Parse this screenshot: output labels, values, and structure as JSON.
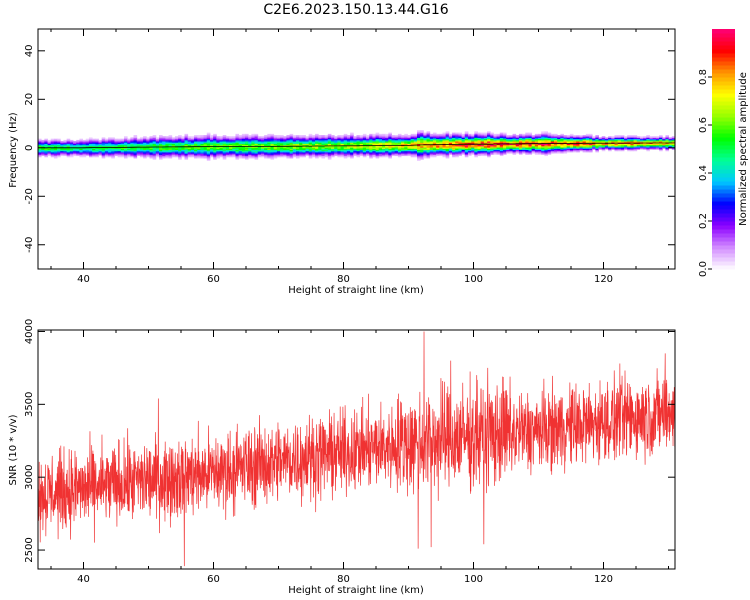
{
  "title": "C2E6.2023.150.13.44.G16",
  "chart_data": [
    {
      "type": "heatmap",
      "xlabel": "Height of straight line (km)",
      "ylabel": "Frequency (Hz)",
      "xlim": [
        33,
        131
      ],
      "ylim": [
        -50,
        49
      ],
      "x_ticks": [
        40,
        60,
        80,
        100,
        120
      ],
      "y_ticks": [
        40,
        20,
        0,
        -20,
        -40
      ],
      "grid": false,
      "signal_band": {
        "x": [
          34,
          40,
          50,
          60,
          70,
          80,
          90,
          92,
          95,
          100,
          102,
          105,
          110,
          115,
          120,
          131
        ],
        "center_freq": [
          0.0,
          0.0,
          0.3,
          0.5,
          0.6,
          0.8,
          1.0,
          1.2,
          1.3,
          1.5,
          1.5,
          1.6,
          1.7,
          1.8,
          1.9,
          2.0
        ],
        "half_width": [
          4,
          4,
          5,
          5.5,
          5,
          5,
          5,
          6,
          5,
          5,
          5,
          4.5,
          4.5,
          4,
          3,
          3
        ],
        "peak_amplitude": [
          0.55,
          0.5,
          0.55,
          0.6,
          0.62,
          0.65,
          0.75,
          0.8,
          0.85,
          0.9,
          0.92,
          0.9,
          0.9,
          0.88,
          0.85,
          0.8
        ]
      },
      "colorbar": {
        "label": "Normalized spectral amplitude",
        "ticks": [
          "0.0",
          "0.2",
          "0.4",
          "0.6",
          "0.8"
        ],
        "range": [
          0,
          1
        ],
        "colors": [
          "#ffffff",
          "#d28cff",
          "#8c00ff",
          "#0000ff",
          "#00c8ff",
          "#00ff96",
          "#00ff00",
          "#96ff00",
          "#ffff00",
          "#ff9600",
          "#ff0000",
          "#ff0078"
        ]
      }
    },
    {
      "type": "line",
      "xlabel": "Height of straight line (km)",
      "ylabel": "SNR (10 * v/v)",
      "xlim": [
        33,
        131
      ],
      "ylim": [
        2370,
        4010
      ],
      "x_ticks": [
        40,
        60,
        80,
        100,
        120
      ],
      "y_ticks": [
        4000,
        3500,
        3000,
        2500
      ],
      "grid": false,
      "color": "#f03232",
      "x_range": [
        33,
        131
      ],
      "trend": {
        "x": [
          33,
          40,
          50,
          60,
          70,
          80,
          90,
          100,
          110,
          120,
          131
        ],
        "y": [
          2880,
          2920,
          2980,
          3030,
          3110,
          3170,
          3230,
          3280,
          3320,
          3380,
          3450
        ]
      },
      "noise_amplitude": 250,
      "spikes": [
        {
          "x": 51.5,
          "y": 3540
        },
        {
          "x": 55.5,
          "y": 2390
        },
        {
          "x": 91.5,
          "y": 2510
        },
        {
          "x": 92.4,
          "y": 4000
        },
        {
          "x": 93.5,
          "y": 2520
        },
        {
          "x": 95.0,
          "y": 3680
        },
        {
          "x": 96.5,
          "y": 3800
        },
        {
          "x": 100.5,
          "y": 3700
        },
        {
          "x": 101.6,
          "y": 2540
        },
        {
          "x": 102.2,
          "y": 3750
        },
        {
          "x": 104.5,
          "y": 3690
        },
        {
          "x": 122.5,
          "y": 3780
        },
        {
          "x": 129.5,
          "y": 3850
        }
      ]
    }
  ]
}
